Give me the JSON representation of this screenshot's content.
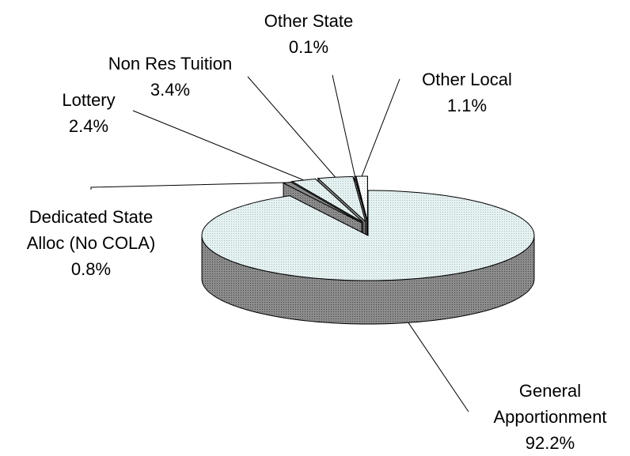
{
  "chart_data": {
    "type": "pie",
    "categories": [
      "General Apportionment",
      "Dedicated State Alloc (No COLA)",
      "Lottery",
      "Non Res Tuition",
      "Other State",
      "Other Local"
    ],
    "values": [
      92.2,
      0.8,
      2.4,
      3.4,
      0.1,
      1.1
    ],
    "value_labels": [
      "92.2%",
      "0.8%",
      "2.4%",
      "3.4%",
      "0.1%",
      "1.1%"
    ],
    "colors": [
      "#e6f2f2",
      "#8a8a8a",
      "#e6f2f2",
      "#e6f2f2",
      "#f4f4f4",
      "#ffffff"
    ]
  }
}
